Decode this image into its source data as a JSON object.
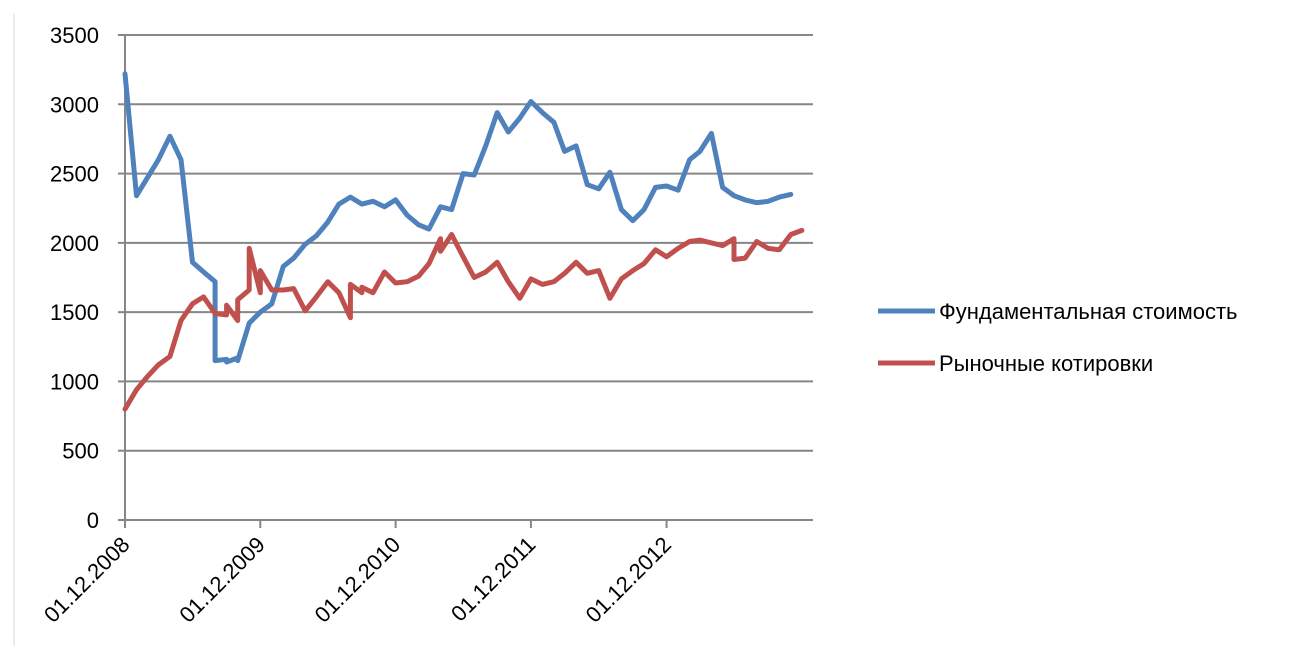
{
  "chart_data": {
    "type": "line",
    "title": "",
    "xlabel": "",
    "ylabel": "",
    "ylim": [
      0,
      3500
    ],
    "yticks": [
      0,
      500,
      1000,
      1500,
      2000,
      2500,
      3000,
      3500
    ],
    "ytick_labels": [
      "0",
      "500",
      "1000",
      "1500",
      "2000",
      "2500",
      "3000",
      "3500"
    ],
    "xlim": [
      "01.12.2008",
      "31.12.2013"
    ],
    "xticks": [
      "01.12.2008",
      "01.12.2009",
      "01.12.2010",
      "01.12.2011",
      "01.12.2012"
    ],
    "grid": "horizontal",
    "legend": "right",
    "series": [
      {
        "name": "Фундаментальная стоимость",
        "color": "#4f81bd",
        "points": [
          [
            "01.12.2008",
            3220
          ],
          [
            "01.01.2009",
            2340
          ],
          [
            "01.03.2009",
            2600
          ],
          [
            "01.04.2009",
            2770
          ],
          [
            "01.05.2009",
            2600
          ],
          [
            "01.06.2009",
            1860
          ],
          [
            "01.07.2009",
            1790
          ],
          [
            "01.08.2009",
            1720
          ],
          [
            "01.08.2009",
            1150
          ],
          [
            "01.09.2009",
            1160
          ],
          [
            "01.09.2009",
            1140
          ],
          [
            "01.10.2009",
            1170
          ],
          [
            "01.10.2009",
            1150
          ],
          [
            "01.11.2009",
            1420
          ],
          [
            "01.12.2009",
            1500
          ],
          [
            "01.01.2010",
            1560
          ],
          [
            "01.02.2010",
            1830
          ],
          [
            "01.03.2010",
            1890
          ],
          [
            "01.04.2010",
            1990
          ],
          [
            "01.05.2010",
            2050
          ],
          [
            "01.06.2010",
            2150
          ],
          [
            "01.07.2010",
            2280
          ],
          [
            "01.08.2010",
            2330
          ],
          [
            "01.09.2010",
            2280
          ],
          [
            "01.10.2010",
            2300
          ],
          [
            "01.11.2010",
            2260
          ],
          [
            "01.12.2010",
            2310
          ],
          [
            "01.01.2011",
            2200
          ],
          [
            "01.02.2011",
            2130
          ],
          [
            "01.03.2011",
            2100
          ],
          [
            "01.04.2011",
            2260
          ],
          [
            "01.05.2011",
            2240
          ],
          [
            "01.06.2011",
            2500
          ],
          [
            "01.07.2011",
            2490
          ],
          [
            "01.08.2011",
            2700
          ],
          [
            "01.09.2011",
            2940
          ],
          [
            "01.10.2011",
            2800
          ],
          [
            "01.11.2011",
            2900
          ],
          [
            "01.12.2011",
            3020
          ],
          [
            "01.01.2012",
            2940
          ],
          [
            "01.02.2012",
            2870
          ],
          [
            "01.03.2012",
            2660
          ],
          [
            "01.04.2012",
            2700
          ],
          [
            "01.05.2012",
            2420
          ],
          [
            "01.06.2012",
            2390
          ],
          [
            "01.07.2012",
            2510
          ],
          [
            "01.08.2012",
            2240
          ],
          [
            "01.09.2012",
            2160
          ],
          [
            "01.10.2012",
            2240
          ],
          [
            "01.11.2012",
            2400
          ],
          [
            "01.12.2012",
            2410
          ],
          [
            "01.01.2013",
            2380
          ],
          [
            "01.02.2013",
            2600
          ],
          [
            "01.03.2013",
            2660
          ],
          [
            "01.04.2013",
            2790
          ],
          [
            "01.05.2013",
            2400
          ],
          [
            "01.06.2013",
            2340
          ],
          [
            "01.07.2013",
            2310
          ],
          [
            "01.08.2013",
            2290
          ],
          [
            "01.09.2013",
            2300
          ],
          [
            "01.10.2013",
            2330
          ],
          [
            "01.11.2013",
            2350
          ]
        ]
      },
      {
        "name": "Рыночные котировки",
        "color": "#c0504d",
        "points": [
          [
            "01.12.2008",
            800
          ],
          [
            "01.01.2009",
            940
          ],
          [
            "01.02.2009",
            1040
          ],
          [
            "01.03.2009",
            1120
          ],
          [
            "01.04.2009",
            1180
          ],
          [
            "01.05.2009",
            1440
          ],
          [
            "01.06.2009",
            1560
          ],
          [
            "01.07.2009",
            1610
          ],
          [
            "01.08.2009",
            1490
          ],
          [
            "01.09.2009",
            1480
          ],
          [
            "01.09.2009",
            1550
          ],
          [
            "01.10.2009",
            1440
          ],
          [
            "01.10.2009",
            1590
          ],
          [
            "01.11.2009",
            1660
          ],
          [
            "01.11.2009",
            1960
          ],
          [
            "01.12.2009",
            1640
          ],
          [
            "01.12.2009",
            1800
          ],
          [
            "01.01.2010",
            1660
          ],
          [
            "01.02.2010",
            1660
          ],
          [
            "01.03.2010",
            1670
          ],
          [
            "01.04.2010",
            1510
          ],
          [
            "01.05.2010",
            1610
          ],
          [
            "01.06.2010",
            1720
          ],
          [
            "01.07.2010",
            1640
          ],
          [
            "01.08.2010",
            1460
          ],
          [
            "01.08.2010",
            1700
          ],
          [
            "01.09.2010",
            1640
          ],
          [
            "01.09.2010",
            1680
          ],
          [
            "01.10.2010",
            1640
          ],
          [
            "01.11.2010",
            1790
          ],
          [
            "01.12.2010",
            1710
          ],
          [
            "01.01.2011",
            1720
          ],
          [
            "01.02.2011",
            1760
          ],
          [
            "01.03.2011",
            1850
          ],
          [
            "01.04.2011",
            2030
          ],
          [
            "01.04.2011",
            1940
          ],
          [
            "01.05.2011",
            2060
          ],
          [
            "01.06.2011",
            1900
          ],
          [
            "01.07.2011",
            1750
          ],
          [
            "01.08.2011",
            1790
          ],
          [
            "01.09.2011",
            1860
          ],
          [
            "01.10.2011",
            1720
          ],
          [
            "01.11.2011",
            1600
          ],
          [
            "01.12.2011",
            1740
          ],
          [
            "01.01.2012",
            1700
          ],
          [
            "01.02.2012",
            1720
          ],
          [
            "01.03.2012",
            1780
          ],
          [
            "01.04.2012",
            1860
          ],
          [
            "01.05.2012",
            1780
          ],
          [
            "01.06.2012",
            1800
          ],
          [
            "01.07.2012",
            1600
          ],
          [
            "01.08.2012",
            1740
          ],
          [
            "01.09.2012",
            1800
          ],
          [
            "01.10.2012",
            1850
          ],
          [
            "01.11.2012",
            1950
          ],
          [
            "01.12.2012",
            1900
          ],
          [
            "01.01.2013",
            1960
          ],
          [
            "01.02.2013",
            2010
          ],
          [
            "01.03.2013",
            2020
          ],
          [
            "01.04.2013",
            2000
          ],
          [
            "01.05.2013",
            1980
          ],
          [
            "01.06.2013",
            2030
          ],
          [
            "01.06.2013",
            1880
          ],
          [
            "01.07.2013",
            1890
          ],
          [
            "01.08.2013",
            2010
          ],
          [
            "01.09.2013",
            1960
          ],
          [
            "01.10.2013",
            1950
          ],
          [
            "01.11.2013",
            2060
          ],
          [
            "01.12.2013",
            2090
          ]
        ]
      }
    ]
  }
}
